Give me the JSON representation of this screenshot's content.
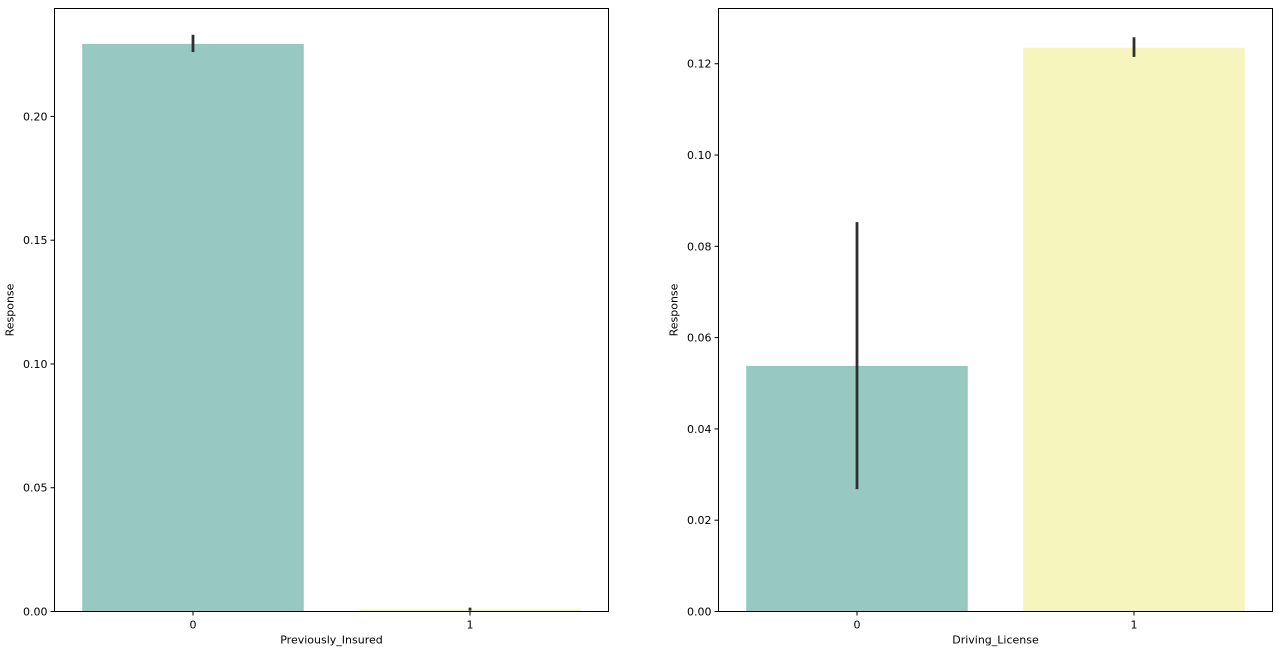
{
  "chart_data": [
    {
      "type": "bar",
      "xlabel": "Previously_Insured",
      "ylabel": "Response",
      "categories": [
        "0",
        "1"
      ],
      "values": [
        0.2293,
        0.0009
      ],
      "error_bars": [
        [
          0.226,
          0.233
        ],
        [
          0.0007,
          0.0012
        ]
      ],
      "ylim": [
        0,
        0.2436
      ],
      "yticks": [
        0.0,
        0.05,
        0.1,
        0.15,
        0.2
      ],
      "ytick_labels": [
        "0.00",
        "0.05",
        "0.10",
        "0.15",
        "0.20"
      ],
      "bar_colors": [
        "#97c9c0",
        "#f5f5bd"
      ],
      "errorbar_color": "#2f2f2f",
      "grid": false
    },
    {
      "type": "bar",
      "xlabel": "Driving_License",
      "ylabel": "Response",
      "categories": [
        "0",
        "1"
      ],
      "values": [
        0.0538,
        0.1235
      ],
      "error_bars": [
        [
          0.0268,
          0.0853
        ],
        [
          0.1215,
          0.1258
        ]
      ],
      "ylim": [
        0,
        0.1321
      ],
      "yticks": [
        0.0,
        0.02,
        0.04,
        0.06,
        0.08,
        0.1,
        0.12
      ],
      "ytick_labels": [
        "0.00",
        "0.02",
        "0.04",
        "0.06",
        "0.08",
        "0.10",
        "0.12"
      ],
      "bar_colors": [
        "#97c9c0",
        "#f5f5bd"
      ],
      "errorbar_color": "#2f2f2f",
      "grid": false
    }
  ]
}
